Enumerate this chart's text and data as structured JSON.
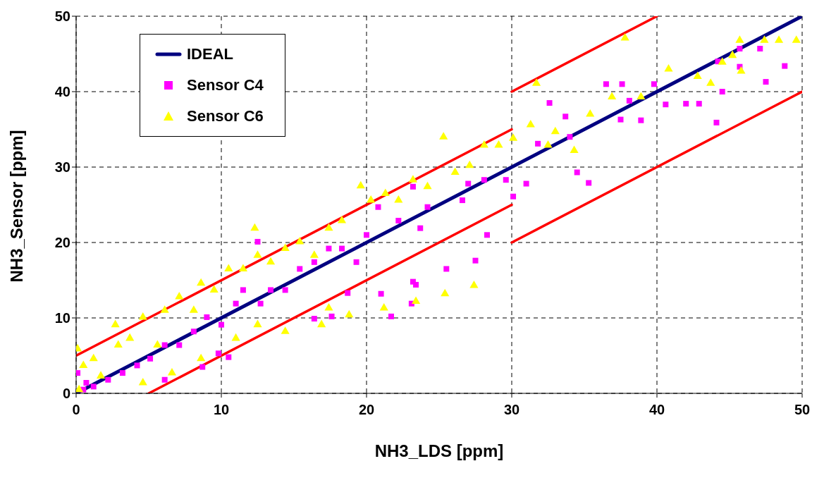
{
  "chart_data": {
    "type": "scatter",
    "xlabel": "NH3_LDS [ppm]",
    "ylabel": "NH3_Sensor [ppm]",
    "xlim": [
      0,
      50
    ],
    "ylim": [
      0,
      50
    ],
    "xticks": [
      0,
      10,
      20,
      30,
      40,
      50
    ],
    "yticks": [
      0,
      10,
      20,
      30,
      40,
      50
    ],
    "grid": true,
    "legend": "top left",
    "series": [
      {
        "name": "IDEAL",
        "type": "line",
        "color": "#000080",
        "marker": "none",
        "line_style": "solid",
        "x": [
          0,
          50
        ],
        "values": [
          0,
          50
        ]
      },
      {
        "name": "Sensor C4",
        "color": "#ff00ff",
        "marker": "square",
        "x": [
          0.1,
          0.5,
          0.7,
          1.2,
          2.2,
          3.2,
          4.2,
          5.1,
          6.1,
          6.1,
          7.1,
          8.1,
          8.7,
          9.0,
          9.8,
          10.0,
          10.5,
          11.0,
          11.5,
          12.5,
          12.7,
          13.4,
          14.4,
          15.4,
          16.4,
          16.4,
          17.4,
          17.6,
          18.3,
          18.7,
          19.3,
          20.0,
          20.8,
          21.0,
          21.7,
          22.2,
          23.1,
          23.2,
          23.2,
          23.4,
          23.7,
          24.2,
          25.5,
          26.6,
          27.0,
          27.5,
          28.1,
          28.3,
          29.6,
          30.1,
          31.0,
          31.8,
          32.6,
          33.7,
          34.0,
          34.5,
          35.3,
          36.5,
          37.5,
          37.6,
          38.1,
          38.9,
          39.8,
          40.6,
          42.0,
          42.9,
          44.1,
          44.2,
          44.5,
          45.7,
          45.7,
          47.1,
          47.5,
          48.8
        ],
        "values": [
          2.7,
          0.5,
          1.4,
          0.9,
          1.8,
          2.7,
          3.7,
          4.6,
          1.8,
          6.4,
          6.4,
          8.2,
          3.5,
          10.1,
          5.3,
          9.1,
          4.8,
          11.9,
          13.7,
          20.1,
          11.9,
          13.7,
          13.7,
          16.5,
          17.4,
          9.9,
          19.2,
          10.2,
          19.2,
          13.3,
          17.4,
          21.0,
          24.7,
          13.2,
          10.2,
          22.9,
          11.9,
          14.8,
          27.4,
          14.4,
          21.9,
          24.7,
          16.5,
          25.6,
          27.8,
          17.6,
          28.3,
          21.0,
          28.3,
          26.1,
          27.8,
          33.1,
          38.5,
          36.7,
          34.0,
          29.3,
          27.9,
          41.0,
          36.3,
          41.0,
          38.8,
          36.2,
          41.0,
          38.3,
          38.4,
          38.4,
          35.9,
          44.0,
          40.0,
          43.3,
          45.7,
          45.7,
          41.3,
          43.4
        ]
      },
      {
        "name": "Sensor C6",
        "color": "#ffff00",
        "marker": "triangle",
        "x": [
          0.1,
          0.2,
          0.5,
          1.2,
          1.7,
          2.7,
          2.9,
          3.7,
          4.6,
          4.6,
          5.6,
          6.1,
          6.6,
          7.1,
          8.1,
          8.6,
          8.6,
          9.5,
          10.5,
          11.0,
          11.5,
          12.3,
          12.5,
          12.5,
          13.4,
          14.4,
          14.4,
          15.4,
          16.4,
          16.9,
          17.4,
          17.4,
          18.3,
          18.8,
          19.6,
          20.3,
          21.2,
          21.3,
          22.2,
          23.2,
          23.4,
          24.2,
          25.3,
          25.4,
          26.1,
          27.1,
          27.4,
          28.1,
          29.1,
          30.1,
          31.3,
          31.7,
          32.5,
          33.0,
          34.3,
          35.4,
          36.9,
          37.8,
          38.9,
          40.8,
          42.8,
          43.7,
          44.5,
          45.2,
          45.7,
          45.8,
          47.4,
          48.4,
          49.6
        ],
        "values": [
          5.9,
          0.5,
          3.7,
          4.6,
          2.3,
          9.1,
          6.4,
          7.3,
          10.1,
          1.4,
          6.4,
          11.0,
          2.7,
          12.8,
          11.0,
          14.6,
          4.6,
          13.7,
          16.5,
          7.3,
          16.5,
          21.9,
          18.3,
          9.1,
          17.4,
          19.2,
          8.2,
          20.1,
          18.3,
          9.1,
          21.9,
          11.3,
          22.9,
          10.4,
          27.5,
          25.6,
          11.3,
          26.5,
          25.6,
          28.3,
          12.2,
          27.4,
          34.0,
          13.2,
          29.3,
          30.2,
          14.3,
          32.9,
          32.9,
          33.8,
          35.6,
          41.1,
          32.9,
          34.7,
          32.2,
          37.0,
          39.3,
          47.1,
          39.3,
          43.0,
          42.0,
          41.1,
          43.9,
          44.8,
          46.8,
          42.7,
          46.8,
          46.8,
          46.8
        ]
      },
      {
        "type": "line",
        "color": "#ff0000",
        "marker": "none",
        "line_style": "solid",
        "x": [
          0,
          30
        ],
        "values": [
          5,
          35
        ]
      },
      {
        "type": "line",
        "color": "#ff0000",
        "marker": "none",
        "line_style": "solid",
        "x": [
          5,
          30
        ],
        "values": [
          0,
          25
        ]
      },
      {
        "type": "line",
        "color": "#ff0000",
        "marker": "none",
        "line_style": "solid",
        "x": [
          30,
          40
        ],
        "values": [
          40,
          50
        ]
      },
      {
        "type": "line",
        "color": "#ff0000",
        "marker": "none",
        "line_style": "solid",
        "x": [
          30,
          50
        ],
        "values": [
          20,
          40
        ]
      }
    ]
  }
}
